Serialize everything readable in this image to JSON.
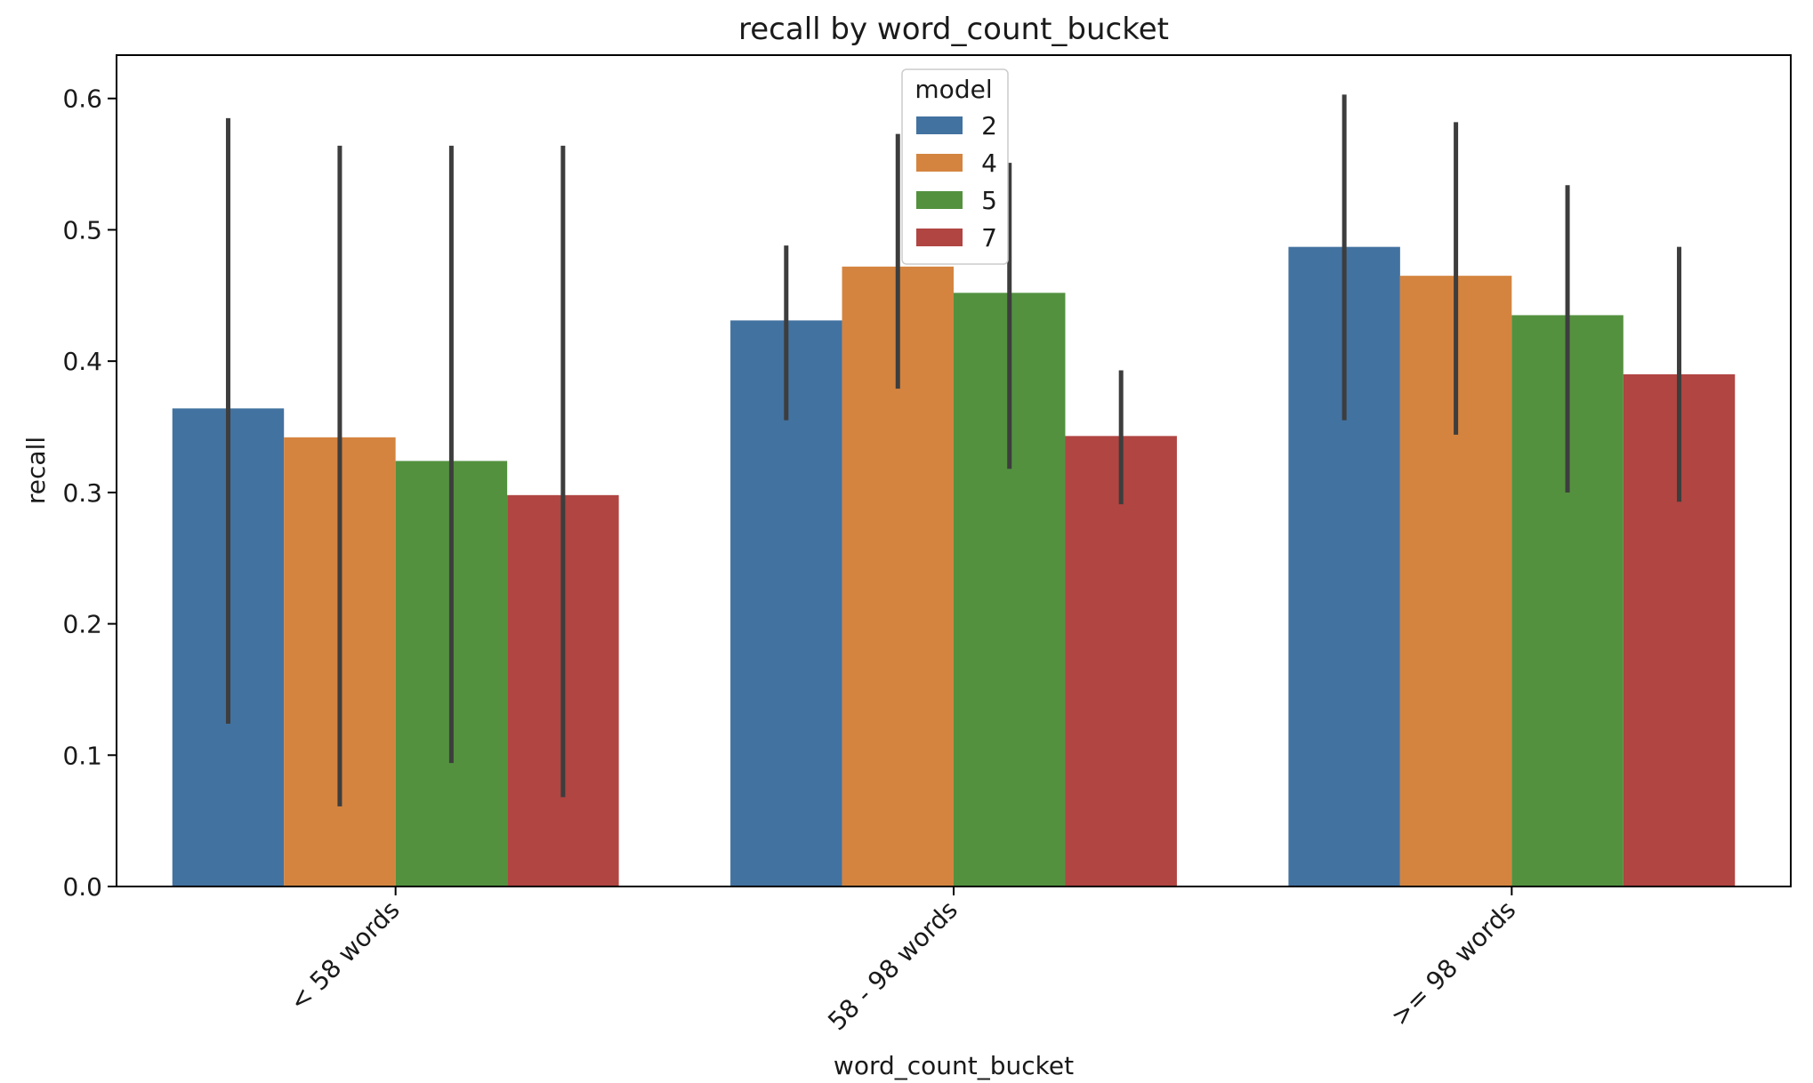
{
  "chart_data": {
    "type": "bar",
    "title": "recall by word_count_bucket",
    "xlabel": "word_count_bucket",
    "ylabel": "recall",
    "categories": [
      "< 58 words",
      "58 - 98 words",
      ">= 98 words"
    ],
    "ylim": [
      0,
      0.633
    ],
    "yticks": [
      0.0,
      0.1,
      0.2,
      0.3,
      0.4,
      0.5,
      0.6
    ],
    "ytick_labels": [
      "0.0",
      "0.1",
      "0.2",
      "0.3",
      "0.4",
      "0.5",
      "0.6"
    ],
    "legend": {
      "title": "model",
      "position": "top-center"
    },
    "grid": false,
    "series": [
      {
        "name": "2",
        "color": "#4272a0",
        "values": [
          0.364,
          0.431,
          0.487
        ],
        "err_low": [
          0.124,
          0.355,
          0.355
        ],
        "err_high": [
          0.585,
          0.488,
          0.603
        ]
      },
      {
        "name": "4",
        "color": "#d4843f",
        "values": [
          0.342,
          0.472,
          0.465
        ],
        "err_low": [
          0.061,
          0.379,
          0.344
        ],
        "err_high": [
          0.564,
          0.573,
          0.582
        ]
      },
      {
        "name": "5",
        "color": "#53913f",
        "values": [
          0.324,
          0.452,
          0.435
        ],
        "err_low": [
          0.094,
          0.318,
          0.3
        ],
        "err_high": [
          0.564,
          0.551,
          0.534
        ]
      },
      {
        "name": "7",
        "color": "#b04542",
        "values": [
          0.298,
          0.343,
          0.39
        ],
        "err_low": [
          0.068,
          0.291,
          0.293
        ],
        "err_high": [
          0.564,
          0.393,
          0.487
        ]
      }
    ]
  }
}
